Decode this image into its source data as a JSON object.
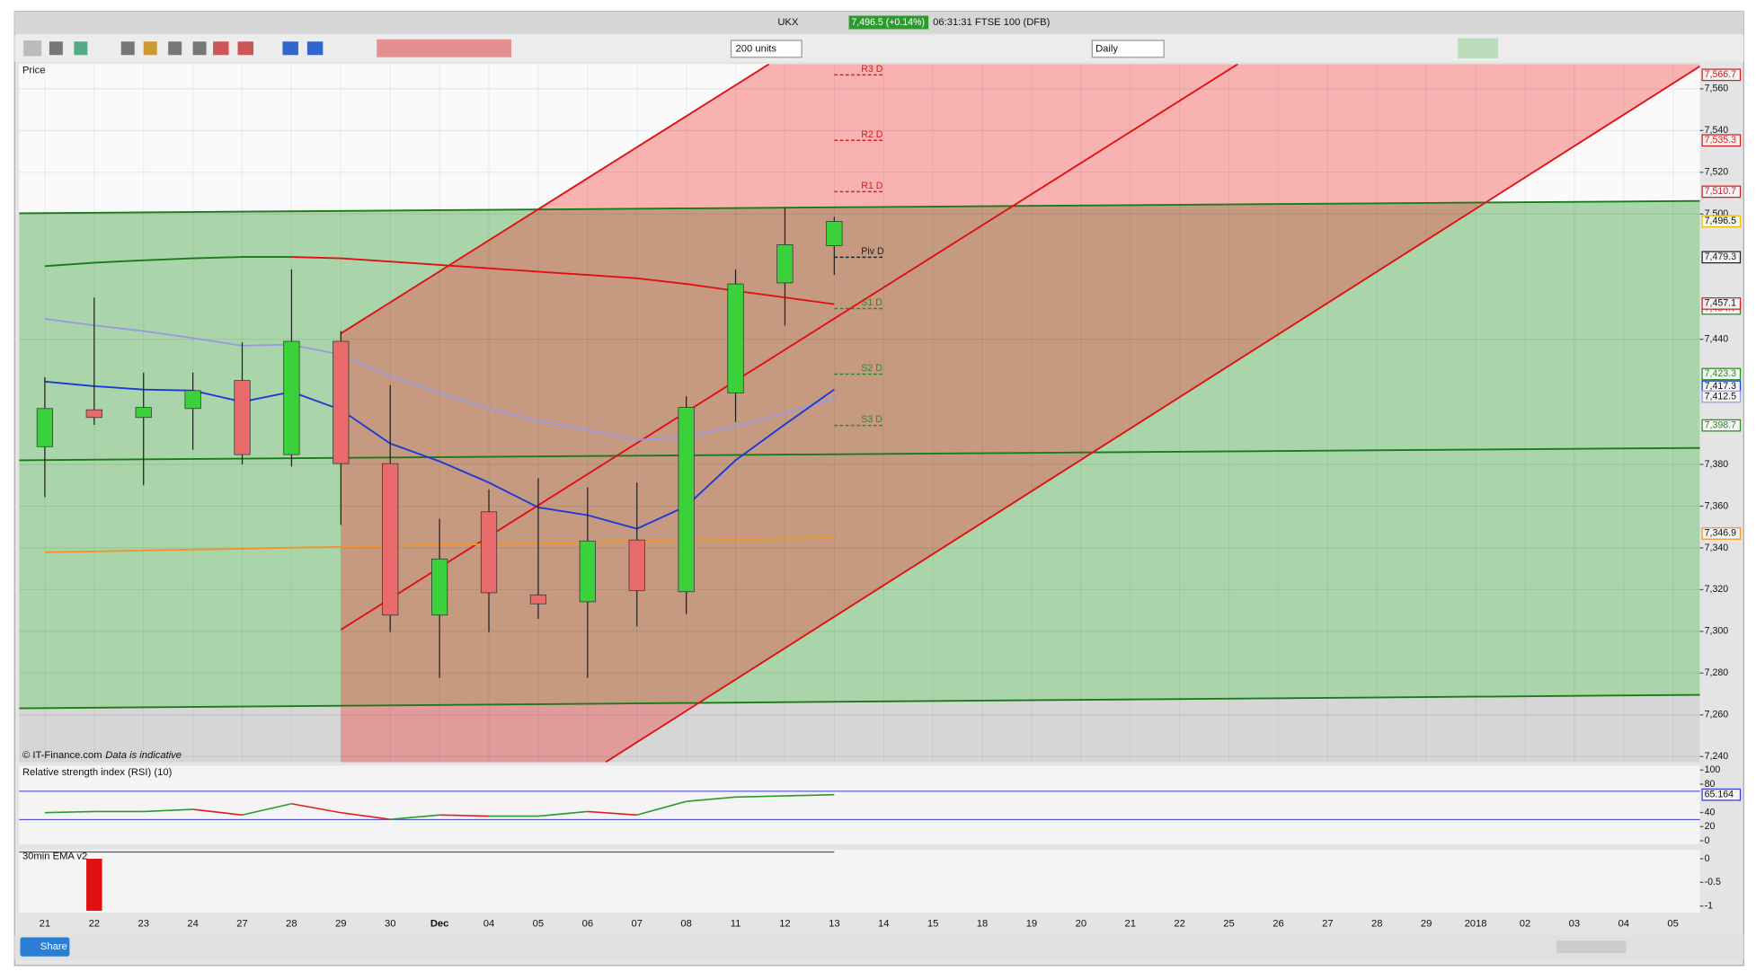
{
  "window": {
    "title": "UKX",
    "price_badge": "7,496.5 (+0.14%)",
    "info": "06:31:31 FTSE 100 (DFB)"
  },
  "toolbar": {
    "units": "200 units",
    "period": "Daily"
  },
  "footer": {
    "share": "Share",
    "copyright": "© IT-Finance.com",
    "note": "Data is indicative"
  },
  "chart_data": [
    {
      "type": "candlestick",
      "title": "Price",
      "categories": [
        "21",
        "22",
        "23",
        "24",
        "27",
        "28",
        "29",
        "30",
        "Dec",
        "04",
        "05",
        "06",
        "07",
        "08",
        "11",
        "12",
        "13",
        "14",
        "15",
        "18",
        "19",
        "20",
        "21",
        "22",
        "25",
        "26",
        "27",
        "28",
        "29",
        "2018",
        "02",
        "03",
        "04",
        "05"
      ],
      "open": [
        7388.5,
        7406.2,
        7402.5,
        7406.8,
        7420.2,
        7384.7,
        7439,
        7380.4,
        7307.8,
        7357.3,
        7317.5,
        7314.2,
        7343.8,
        7319,
        7414.3,
        7467,
        7484.8,
        null,
        null,
        null,
        null,
        null,
        null,
        null,
        null,
        null,
        null,
        null,
        null,
        null,
        null,
        null,
        null,
        null
      ],
      "high": [
        7421.8,
        7460,
        7424,
        7424,
        7438.5,
        7473.5,
        7443.9,
        7418,
        7354,
        7368,
        7373.4,
        7369,
        7371.3,
        7412.7,
        7473.5,
        7503,
        7498.7,
        null,
        null,
        null,
        null,
        null,
        null,
        null,
        null,
        null,
        null,
        null,
        null,
        null,
        null,
        null,
        null,
        null
      ],
      "low": [
        7364.3,
        7399,
        7370,
        7387,
        7380,
        7379,
        7351,
        7299.7,
        7277.7,
        7299.7,
        7306,
        7277.7,
        7302.4,
        7308.3,
        7400.3,
        7446.6,
        7470.8,
        null,
        null,
        null,
        null,
        null,
        null,
        null,
        null,
        null,
        null,
        null,
        null,
        null,
        null,
        null,
        null,
        null
      ],
      "close": [
        7406.8,
        7402.5,
        7407.3,
        7415.4,
        7384.7,
        7439,
        7380.4,
        7307.8,
        7334.7,
        7318.5,
        7313.2,
        7343.3,
        7319.6,
        7407.3,
        7466.5,
        7485.3,
        7496.5,
        null,
        null,
        null,
        null,
        null,
        null,
        null,
        null,
        null,
        null,
        null,
        null,
        null,
        null,
        null,
        null,
        null
      ],
      "up_color": "#3ad13a",
      "down_color": "#e86a6a",
      "series": [
        {
          "color": "#1a7a1a",
          "values": [
            7475,
            7476.7,
            7477.8,
            7478.8,
            7479.4,
            7479.4,
            null,
            null,
            null,
            null,
            null,
            null,
            null,
            null,
            null,
            null,
            null,
            null,
            null,
            null,
            null,
            null,
            null,
            null,
            null,
            null,
            null,
            null,
            null,
            null,
            null,
            null,
            null,
            null
          ]
        },
        {
          "color": "#e01010",
          "values": [
            null,
            null,
            null,
            null,
            null,
            7479.4,
            7478.8,
            7477.2,
            7475.6,
            7474,
            7472.4,
            7470.8,
            7469.2,
            7466.5,
            7463.2,
            7460,
            7456.8,
            null,
            null,
            null,
            null,
            null,
            null,
            null,
            null,
            null,
            null,
            null,
            null,
            null,
            null,
            null,
            null,
            null
          ]
        },
        {
          "color": "#9a9ae0",
          "values": [
            7449.8,
            7446.6,
            7443.9,
            7440.6,
            7436.9,
            7437.4,
            7432.6,
            7422.4,
            7414.3,
            7406.8,
            7400.8,
            7396.5,
            7391.7,
            7393.3,
            7398.2,
            7404.6,
            7411.6,
            null,
            null,
            null,
            null,
            null,
            null,
            null,
            null,
            null,
            null,
            null,
            null,
            null,
            null,
            null,
            null,
            null
          ]
        },
        {
          "color": "#1a3ad8",
          "values": [
            7419.7,
            7417.5,
            7415.9,
            7415.4,
            7410,
            7414.8,
            7406.2,
            7390,
            7381.5,
            7371.3,
            7359.4,
            7355.7,
            7349.2,
            7360,
            7382,
            7399.2,
            7415.9,
            null,
            null,
            null,
            null,
            null,
            null,
            null,
            null,
            null,
            null,
            null,
            null,
            null,
            null,
            null,
            null,
            null
          ]
        },
        {
          "color": "#f0952a",
          "values": [
            7337.9,
            7338.3,
            7338.8,
            7339.2,
            7339.6,
            7340.1,
            7340.5,
            7341,
            7341.4,
            7341.8,
            7342.3,
            7342.7,
            7343.2,
            7343.6,
            7344,
            7344.5,
            7344.9,
            null,
            null,
            null,
            null,
            null,
            null,
            null,
            null,
            null,
            null,
            null,
            null,
            null,
            null,
            null,
            null,
            null
          ]
        }
      ],
      "pivots": {
        "labels": [
          "R3 D",
          "R2 D",
          "R1 D",
          "Piv D",
          "S1 D",
          "S2 D",
          "S3 D"
        ],
        "values": [
          7566.7,
          7535.3,
          7510.7,
          7479.3,
          7454.7,
          7423.3,
          7398.7
        ],
        "value_labels": [
          "7,566.7",
          "7,535.3",
          "7,510.7",
          "7,479.3",
          "7,454.7",
          "7,423.3",
          "7,398.7"
        ],
        "colors": [
          "#d02020",
          "#d02020",
          "#d02020",
          "#222222",
          "#2a8a2a",
          "#2a8a2a",
          "#2a8a2a"
        ]
      },
      "price_badges": {
        "values": [
          7496.5,
          7457.1,
          7417.3,
          7412.5,
          7346.9
        ],
        "value_labels": [
          "7,496.5",
          "7,457.1",
          "7,417.3",
          "7,412.5",
          "7,346.9"
        ],
        "colors": [
          "#e8c000",
          "#d02020",
          "#1a3ad8",
          "#9a9ae0",
          "#f0952a"
        ]
      },
      "ylim": [
        7237.3,
        7571.9
      ],
      "yticks": [
        {
          "value": 7240,
          "label": "7,240"
        },
        {
          "value": 7260,
          "label": "7,260"
        },
        {
          "value": 7280,
          "label": "7,280"
        },
        {
          "value": 7300,
          "label": "7,300"
        },
        {
          "value": 7320,
          "label": "7,320"
        },
        {
          "value": 7340,
          "label": "7,340"
        },
        {
          "value": 7360,
          "label": "7,360"
        },
        {
          "value": 7380,
          "label": "7,380"
        },
        {
          "value": 7440,
          "label": "7,440"
        },
        {
          "value": 7500,
          "label": "7,500"
        },
        {
          "value": 7520,
          "label": "7,520"
        },
        {
          "value": 7540,
          "label": "7,540"
        },
        {
          "value": 7560,
          "label": "7,560"
        }
      ],
      "grid": true
    },
    {
      "type": "line",
      "title": "Relative strength index (RSI) (10)",
      "values": [
        39.7,
        41.3,
        41.3,
        44.4,
        36.5,
        52.4,
        39.7,
        30.2,
        36.5,
        34.9,
        34.9,
        41.3,
        36.5,
        55.6,
        61.9,
        63.5,
        65.164
      ],
      "up_color": "#2a9a2a",
      "down_color": "#e02020",
      "levels": [
        70,
        30
      ],
      "level_color": "#3a3ad0",
      "badge": 65.164,
      "ylim": [
        -4.8,
        106.3
      ],
      "yticks": [
        100,
        80,
        40,
        20,
        0
      ]
    },
    {
      "type": "bar",
      "title": "30min EMA v2",
      "values": [
        null,
        -1.1
      ],
      "color": "#e01010",
      "ylim": [
        -1.14,
        0.19
      ],
      "yticks": [
        0,
        -0.5,
        -1
      ]
    }
  ]
}
